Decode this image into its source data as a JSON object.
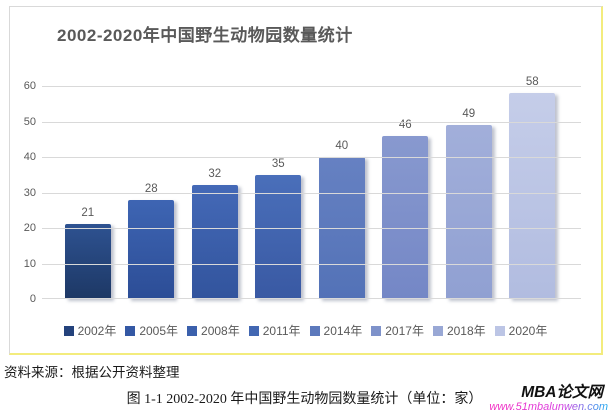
{
  "page": {
    "source_note": "资料来源：根据公开资料整理",
    "figure_caption": "图 1-1 2002-2020 年中国野生动物园数量统计（单位：家）",
    "watermark": {
      "name": "MBA论文网",
      "url": "www.51mbalunwen.com"
    }
  },
  "chart_data": {
    "type": "bar",
    "title": "2002-2020年中国野生动物园数量统计",
    "categories": [
      "2002年",
      "2005年",
      "2008年",
      "2011年",
      "2014年",
      "2017年",
      "2018年",
      "2020年"
    ],
    "values": [
      21,
      28,
      32,
      35,
      40,
      46,
      49,
      58
    ],
    "xlabel": "",
    "ylabel": "",
    "ylim": [
      0,
      60
    ],
    "yticks": [
      0,
      10,
      20,
      30,
      40,
      50,
      60
    ],
    "grid": true,
    "legend_position": "bottom",
    "bar_gradients": [
      {
        "top": "#2e5291",
        "bottom": "#1d3865"
      },
      {
        "top": "#3e65b3",
        "bottom": "#2c4d96"
      },
      {
        "top": "#4469b7",
        "bottom": "#32549d"
      },
      {
        "top": "#4a6fba",
        "bottom": "#3959a3"
      },
      {
        "top": "#6681c2",
        "bottom": "#5372b7"
      },
      {
        "top": "#8899cf",
        "bottom": "#7487c6"
      },
      {
        "top": "#a2afda",
        "bottom": "#90a0d2"
      },
      {
        "top": "#c5cde9",
        "bottom": "#b1bce0"
      }
    ],
    "legend_colors": [
      "#24427c",
      "#3458a4",
      "#3b60ac",
      "#4267b2",
      "#5c79bc",
      "#7e92ca",
      "#99a8d5",
      "#bcc5e5"
    ],
    "label_color": "#595959",
    "gridline_color": "#d9d9d9",
    "frame_border_gray": "#d9d9d9",
    "frame_border_yellow": "#f3ec7d"
  }
}
